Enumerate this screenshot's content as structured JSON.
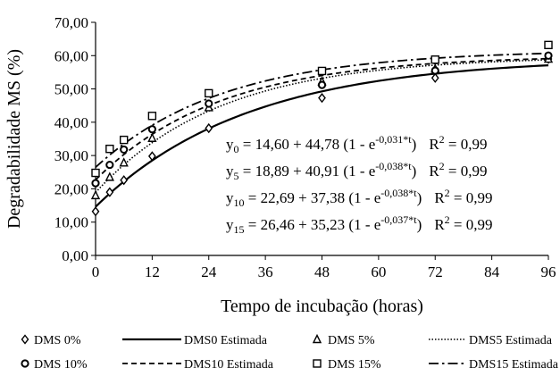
{
  "chart_data": {
    "type": "scatter",
    "xlabel": "Tempo de incubação (horas)",
    "ylabel": "Degradabilidade MS (%)",
    "xlim": [
      0,
      96
    ],
    "ylim": [
      0,
      70
    ],
    "x_ticks": [
      "0",
      "12",
      "24",
      "36",
      "48",
      "60",
      "72",
      "84",
      "96"
    ],
    "y_ticks": [
      "0,00",
      "10,00",
      "20,00",
      "30,00",
      "40,00",
      "50,00",
      "60,00",
      "70,00"
    ],
    "grid": false,
    "legend_position": "bottom",
    "observed": [
      {
        "name": "DMS 0%",
        "marker": "diamond",
        "x": [
          0,
          3,
          6,
          12,
          24,
          48,
          72,
          96
        ],
        "y": [
          13.2,
          19.0,
          22.6,
          29.8,
          38.2,
          47.3,
          53.3,
          59.0
        ]
      },
      {
        "name": "DMS 5%",
        "marker": "triangle",
        "x": [
          0,
          3,
          6,
          12,
          24,
          48,
          72,
          96
        ],
        "y": [
          18.0,
          23.5,
          27.8,
          35.2,
          44.4,
          52.2,
          56.0,
          59.0
        ]
      },
      {
        "name": "DMS 10%",
        "marker": "circle",
        "x": [
          0,
          3,
          6,
          12,
          24,
          48,
          72,
          96
        ],
        "y": [
          21.7,
          27.2,
          31.8,
          37.9,
          45.6,
          51.2,
          55.5,
          60.0
        ]
      },
      {
        "name": "DMS 15%",
        "marker": "square",
        "x": [
          0,
          3,
          6,
          12,
          24,
          48,
          72,
          96
        ],
        "y": [
          24.8,
          32.0,
          34.7,
          41.9,
          48.7,
          55.4,
          58.8,
          63.2
        ]
      }
    ],
    "estimated": [
      {
        "name": "DMS0 Estimada",
        "dash": "solid",
        "a": 14.6,
        "b": 44.78,
        "c": 0.031
      },
      {
        "name": "DMS5 Estimada",
        "dash": "dotted",
        "a": 18.89,
        "b": 40.91,
        "c": 0.038
      },
      {
        "name": "DMS10 Estimada",
        "dash": "dashed",
        "a": 22.69,
        "b": 37.38,
        "c": 0.038
      },
      {
        "name": "DMS15 Estimada",
        "dash": "dashdot",
        "a": 26.46,
        "b": 35.23,
        "c": 0.037
      }
    ],
    "equations": [
      {
        "sub": "0",
        "body": " = 14,60 + 44,78 (1 - e",
        "exp": "-0,031*t",
        "close": ")",
        "r2": " = 0,99"
      },
      {
        "sub": "5",
        "body": " = 18,89 + 40,91 (1 - e",
        "exp": "-0,038*t",
        "close": ")",
        "r2": " = 0,99"
      },
      {
        "sub": "10",
        "body": " = 22,69 + 37,38 (1 - e",
        "exp": "-0,038*t",
        "close": ")",
        "r2": " = 0,99"
      },
      {
        "sub": "15",
        "body": " = 26,46 + 35,23 (1 - e",
        "exp": "-0,037*t",
        "close": ")",
        "r2": " = 0,99"
      }
    ],
    "legend": [
      {
        "label": "DMS 0%",
        "kind": "marker",
        "marker": "diamond"
      },
      {
        "label": "DMS0 Estimada",
        "kind": "line",
        "dash": "solid"
      },
      {
        "label": "DMS 5%",
        "kind": "marker",
        "marker": "triangle"
      },
      {
        "label": "DMS5 Estimada",
        "kind": "line",
        "dash": "dotted"
      },
      {
        "label": "DMS 10%",
        "kind": "marker",
        "marker": "circle"
      },
      {
        "label": "DMS10 Estimada",
        "kind": "line",
        "dash": "dashed"
      },
      {
        "label": "DMS 15%",
        "kind": "marker",
        "marker": "square"
      },
      {
        "label": "DMS15 Estimada",
        "kind": "line",
        "dash": "dashdot"
      }
    ]
  }
}
